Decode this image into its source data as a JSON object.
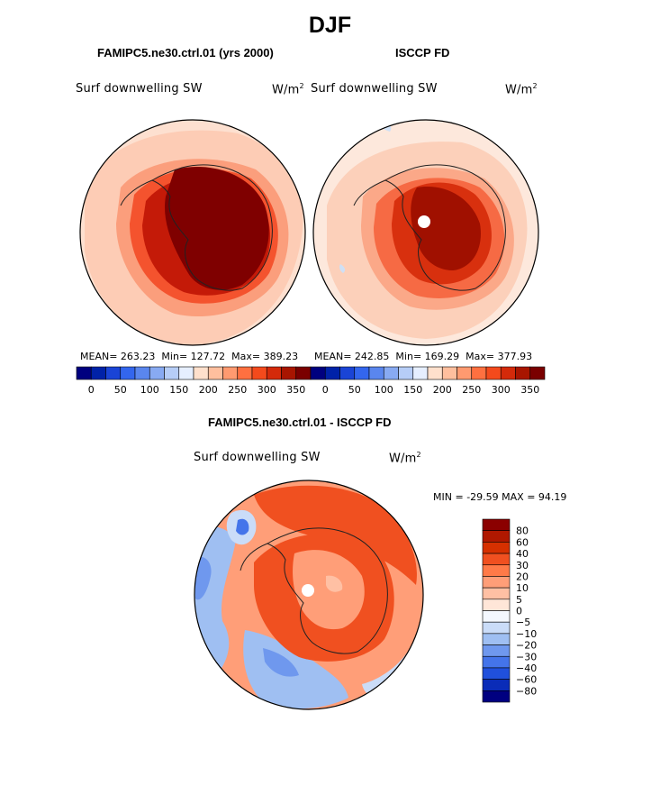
{
  "page": {
    "title": "DJF"
  },
  "chart_data": [
    {
      "type": "heatmap",
      "projection": "south-polar-stereographic",
      "title": "FAMIPC5.ne30.ctrl.01 (yrs 2000)",
      "variable": "Surf downwelling SW",
      "units": "W/m",
      "units_sup": "2",
      "stats": {
        "mean_label": "MEAN=",
        "mean": "263.23",
        "min_label": "Min=",
        "min": "127.72",
        "max_label": "Max=",
        "max": "389.23"
      },
      "colorbar": {
        "orientation": "horizontal",
        "levels": [
          25,
          50,
          75,
          100,
          125,
          150,
          175,
          200,
          225,
          250,
          275,
          300,
          325,
          350
        ],
        "tick_labels": [
          "0",
          "50",
          "100",
          "150",
          "200",
          "250",
          "300",
          "350"
        ],
        "colors": [
          "#00007f",
          "#0022a8",
          "#1a44d6",
          "#3366ee",
          "#5a86ee",
          "#88aaf2",
          "#b6cdf7",
          "#e6efff",
          "#ffe0cc",
          "#ffbf9e",
          "#ff9a70",
          "#ff7040",
          "#f44a1c",
          "#d42a0a",
          "#a81500",
          "#7a0000"
        ]
      }
    },
    {
      "type": "heatmap",
      "projection": "south-polar-stereographic",
      "title": "ISCCP FD",
      "variable": "Surf downwelling SW",
      "units": "W/m",
      "units_sup": "2",
      "stats": {
        "mean_label": "MEAN=",
        "mean": "242.85",
        "min_label": "Min=",
        "min": "169.29",
        "max_label": "Max=",
        "max": "377.93"
      },
      "colorbar": {
        "orientation": "horizontal",
        "levels": [
          25,
          50,
          75,
          100,
          125,
          150,
          175,
          200,
          225,
          250,
          275,
          300,
          325,
          350
        ],
        "tick_labels": [
          "0",
          "50",
          "100",
          "150",
          "200",
          "250",
          "300",
          "350"
        ],
        "colors": [
          "#00007f",
          "#0022a8",
          "#1a44d6",
          "#3366ee",
          "#5a86ee",
          "#88aaf2",
          "#b6cdf7",
          "#e6efff",
          "#ffe0cc",
          "#ffbf9e",
          "#ff9a70",
          "#ff7040",
          "#f44a1c",
          "#d42a0a",
          "#a81500",
          "#7a0000"
        ]
      }
    },
    {
      "type": "heatmap",
      "projection": "south-polar-stereographic",
      "title": "FAMIPC5.ne30.ctrl.01 - ISCCP FD",
      "variable": "Surf downwelling SW",
      "units": "W/m",
      "units_sup": "2",
      "stats": {
        "min_label": "MIN =",
        "min": "-29.59",
        "max_label": "MAX =",
        "max": "94.19"
      },
      "colorbar": {
        "orientation": "vertical",
        "tick_labels": [
          "80",
          "60",
          "40",
          "30",
          "20",
          "10",
          "5",
          "0",
          "−5",
          "−10",
          "−20",
          "−30",
          "−40",
          "−60",
          "−80"
        ],
        "colors": [
          "#8b0000",
          "#b01800",
          "#d63000",
          "#f05020",
          "#ff7a48",
          "#ff9e78",
          "#ffc0a4",
          "#ffe6d8",
          "#f4f8ff",
          "#cadcf8",
          "#9fbff2",
          "#6f98ee",
          "#4474ea",
          "#2050dc",
          "#0a2cb8",
          "#000080"
        ]
      }
    }
  ]
}
